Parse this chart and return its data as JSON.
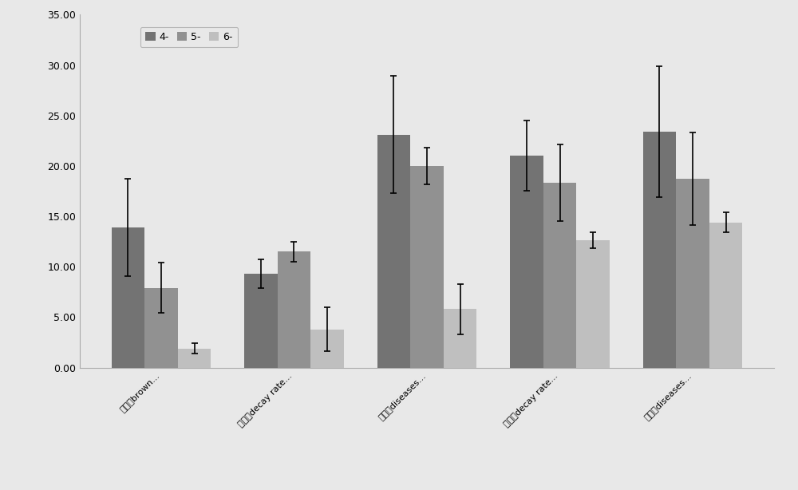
{
  "categories": [
    "棵尾茱brown...",
    "腐烂茱decay rate...",
    "精果茱diseases...",
    "腐烂茱decay rate...",
    "精果茱diseases..."
  ],
  "series": [
    {
      "label": "4-",
      "color": "#737373",
      "values": [
        13.9,
        9.3,
        23.1,
        21.0,
        23.4
      ],
      "errors": [
        4.8,
        1.4,
        5.8,
        3.5,
        6.5
      ]
    },
    {
      "label": "5-",
      "color": "#919191",
      "values": [
        7.9,
        11.5,
        20.0,
        18.3,
        18.7
      ],
      "errors": [
        2.5,
        1.0,
        1.8,
        3.8,
        4.6
      ]
    },
    {
      "label": "6-",
      "color": "#bfbfbf",
      "values": [
        1.9,
        3.8,
        5.8,
        12.6,
        14.4
      ],
      "errors": [
        0.5,
        2.2,
        2.5,
        0.8,
        1.0
      ]
    }
  ],
  "ylim": [
    0,
    35.0
  ],
  "yticks": [
    0.0,
    5.0,
    10.0,
    15.0,
    20.0,
    25.0,
    30.0,
    35.0
  ],
  "ylabel": "",
  "xlabel": "",
  "title": "",
  "bar_width": 0.25,
  "legend_loc": "upper left",
  "background_color": "#e8e8e8",
  "plot_background": "#e8e8e8",
  "figsize": [
    10.0,
    6.14
  ],
  "dpi": 100
}
